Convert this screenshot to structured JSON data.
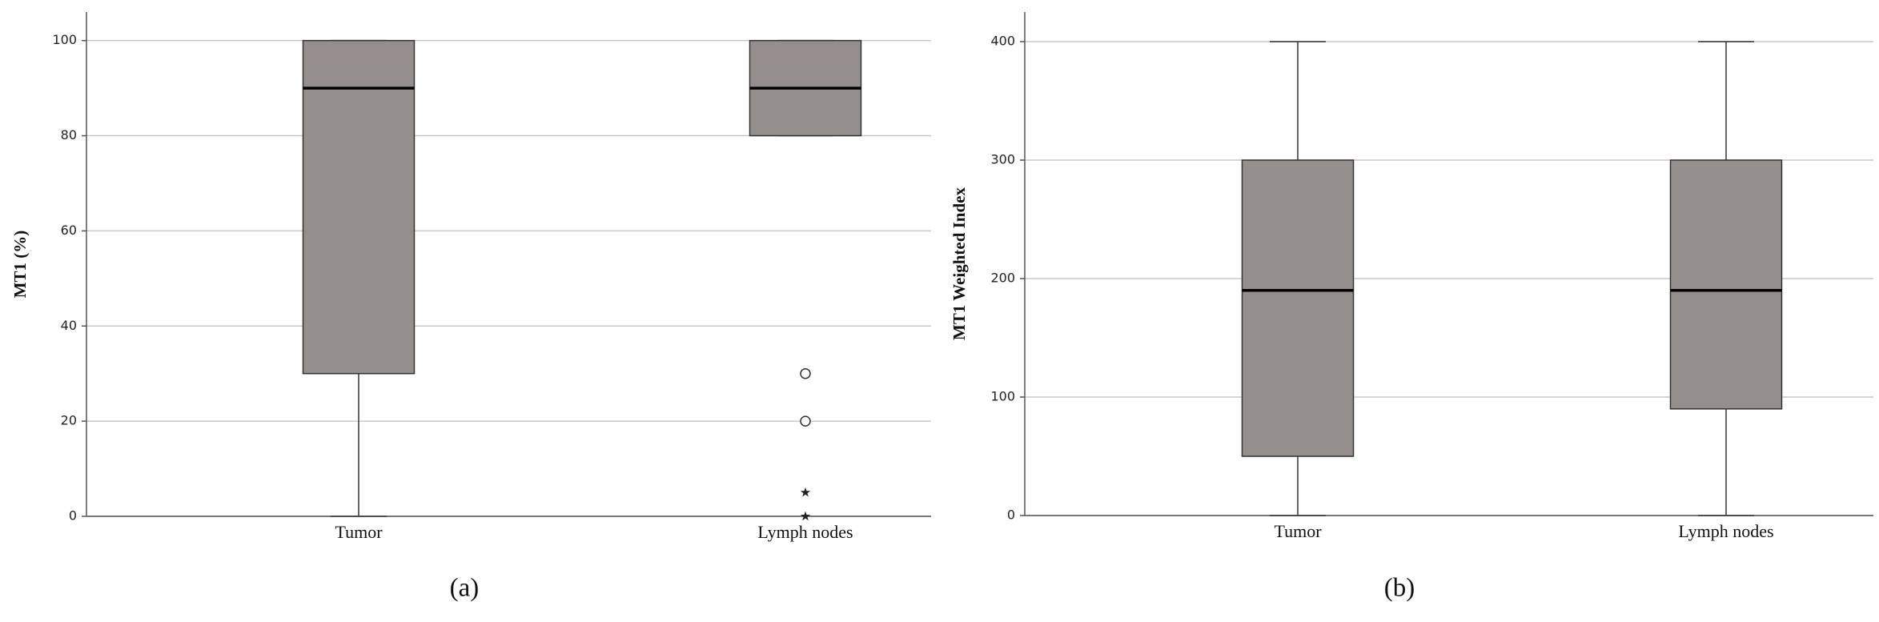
{
  "chart_data": [
    {
      "type": "box",
      "panel_label": "(a)",
      "y_label": "MT1 (%)",
      "categories": [
        "Tumor",
        "Lymph nodes"
      ],
      "boxes": [
        {
          "min": 0,
          "q1": 30,
          "median": 90,
          "q3": 100,
          "max": 100
        },
        {
          "min": 80,
          "q1": 80,
          "median": 90,
          "q3": 100,
          "max": 100
        }
      ],
      "outliers": [
        [],
        [
          30,
          20
        ]
      ],
      "extremes": [
        [],
        [
          5,
          0
        ]
      ],
      "color": "#948f8d",
      "ylim": [
        0,
        106
      ],
      "yticks": [
        0,
        20,
        40,
        60,
        80,
        100
      ],
      "grid": true
    },
    {
      "type": "box",
      "panel_label": "(b)",
      "y_label": "MT1 Weighted Index",
      "categories": [
        "Tumor",
        "Lymph nodes"
      ],
      "boxes": [
        {
          "min": 0,
          "q1": 50,
          "median": 190,
          "q3": 300,
          "max": 400
        },
        {
          "min": 0,
          "q1": 90,
          "median": 190,
          "q3": 300,
          "max": 400
        }
      ],
      "outliers": [
        [],
        []
      ],
      "extremes": [
        [],
        []
      ],
      "color": "#948f8d",
      "ylim": [
        0,
        425
      ],
      "yticks": [
        0,
        100,
        200,
        300,
        400
      ],
      "grid": true
    }
  ]
}
